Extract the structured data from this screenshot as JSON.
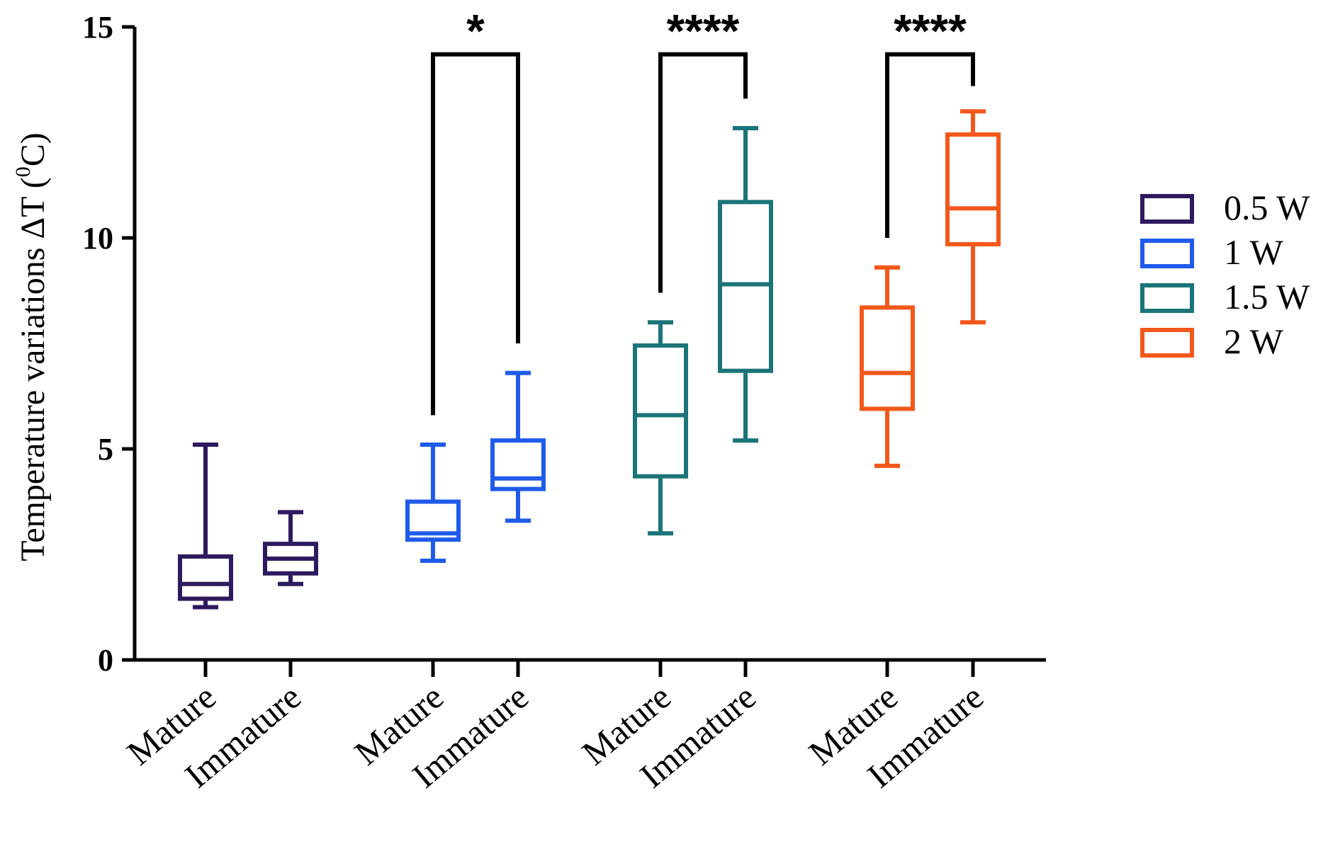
{
  "chart_data": {
    "type": "box",
    "title": "",
    "xlabel": "",
    "ylabel": "Temperature variations ΔT (",
    "ylabel_sup": "0",
    "ylabel_suffix": "C)",
    "ylim": [
      0,
      15
    ],
    "yticks": [
      0,
      5,
      10,
      15
    ],
    "ytick_labels": [
      "0",
      "5",
      "10",
      "15"
    ],
    "legend": {
      "position": "right",
      "entries": [
        {
          "label": "0.5 W",
          "color": "#2e1a5e"
        },
        {
          "label": "1 W",
          "color": "#1f5bea"
        },
        {
          "label": "1.5 W",
          "color": "#1b7478"
        },
        {
          "label": "2 W",
          "color": "#f2581b"
        }
      ]
    },
    "boxes": [
      {
        "label": "Mature",
        "group": "0.5 W",
        "color": "#2e1a5e",
        "min": 1.25,
        "q1": 1.45,
        "median": 1.8,
        "q3": 2.45,
        "max": 5.1
      },
      {
        "label": "Immature",
        "group": "0.5 W",
        "color": "#2e1a5e",
        "min": 1.8,
        "q1": 2.05,
        "median": 2.4,
        "q3": 2.75,
        "max": 3.5
      },
      {
        "label": "Mature",
        "group": "1 W",
        "color": "#1f5bea",
        "min": 2.35,
        "q1": 2.85,
        "median": 3.0,
        "q3": 3.75,
        "max": 5.1
      },
      {
        "label": "Immature",
        "group": "1 W",
        "color": "#1f5bea",
        "min": 3.3,
        "q1": 4.05,
        "median": 4.3,
        "q3": 5.2,
        "max": 6.8
      },
      {
        "label": "Mature",
        "group": "1.5 W",
        "color": "#1b7478",
        "min": 3.0,
        "q1": 4.35,
        "median": 5.8,
        "q3": 7.45,
        "max": 8.0
      },
      {
        "label": "Immature",
        "group": "1.5 W",
        "color": "#1b7478",
        "min": 5.2,
        "q1": 6.85,
        "median": 8.9,
        "q3": 10.85,
        "max": 12.6
      },
      {
        "label": "Mature",
        "group": "2 W",
        "color": "#f2581b",
        "min": 4.6,
        "q1": 5.95,
        "median": 6.8,
        "q3": 8.35,
        "max": 9.3
      },
      {
        "label": "Immature",
        "group": "2 W",
        "color": "#f2581b",
        "min": 8.0,
        "q1": 9.85,
        "median": 10.7,
        "q3": 12.45,
        "max": 13.0
      }
    ],
    "significance": [
      {
        "from": 2,
        "to": 3,
        "label": "*",
        "top": 14.35,
        "left_end": 5.8,
        "right_end": 7.5
      },
      {
        "from": 4,
        "to": 5,
        "label": "****",
        "top": 14.35,
        "left_end": 8.7,
        "right_end": 13.3
      },
      {
        "from": 6,
        "to": 7,
        "label": "****",
        "top": 14.35,
        "left_end": 10.0,
        "right_end": 13.6
      }
    ]
  }
}
